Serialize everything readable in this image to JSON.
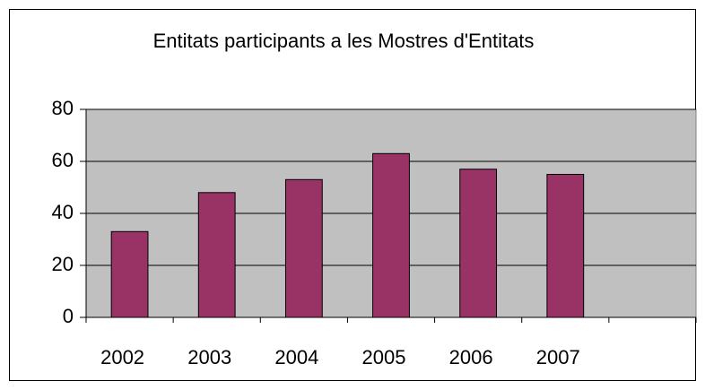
{
  "chart_data": {
    "type": "bar",
    "title": "Entitats participants a les  Mostres d'Entitats",
    "categories": [
      "2002",
      "2003",
      "2004",
      "2005",
      "2006",
      "2007",
      null
    ],
    "values": [
      33,
      48,
      53,
      63,
      57,
      55,
      null
    ],
    "color": "#993366",
    "plot_background": "#c0c0c0",
    "ylim": [
      0,
      80
    ],
    "yticks": [
      0,
      20,
      40,
      60,
      80
    ],
    "grid": true
  }
}
